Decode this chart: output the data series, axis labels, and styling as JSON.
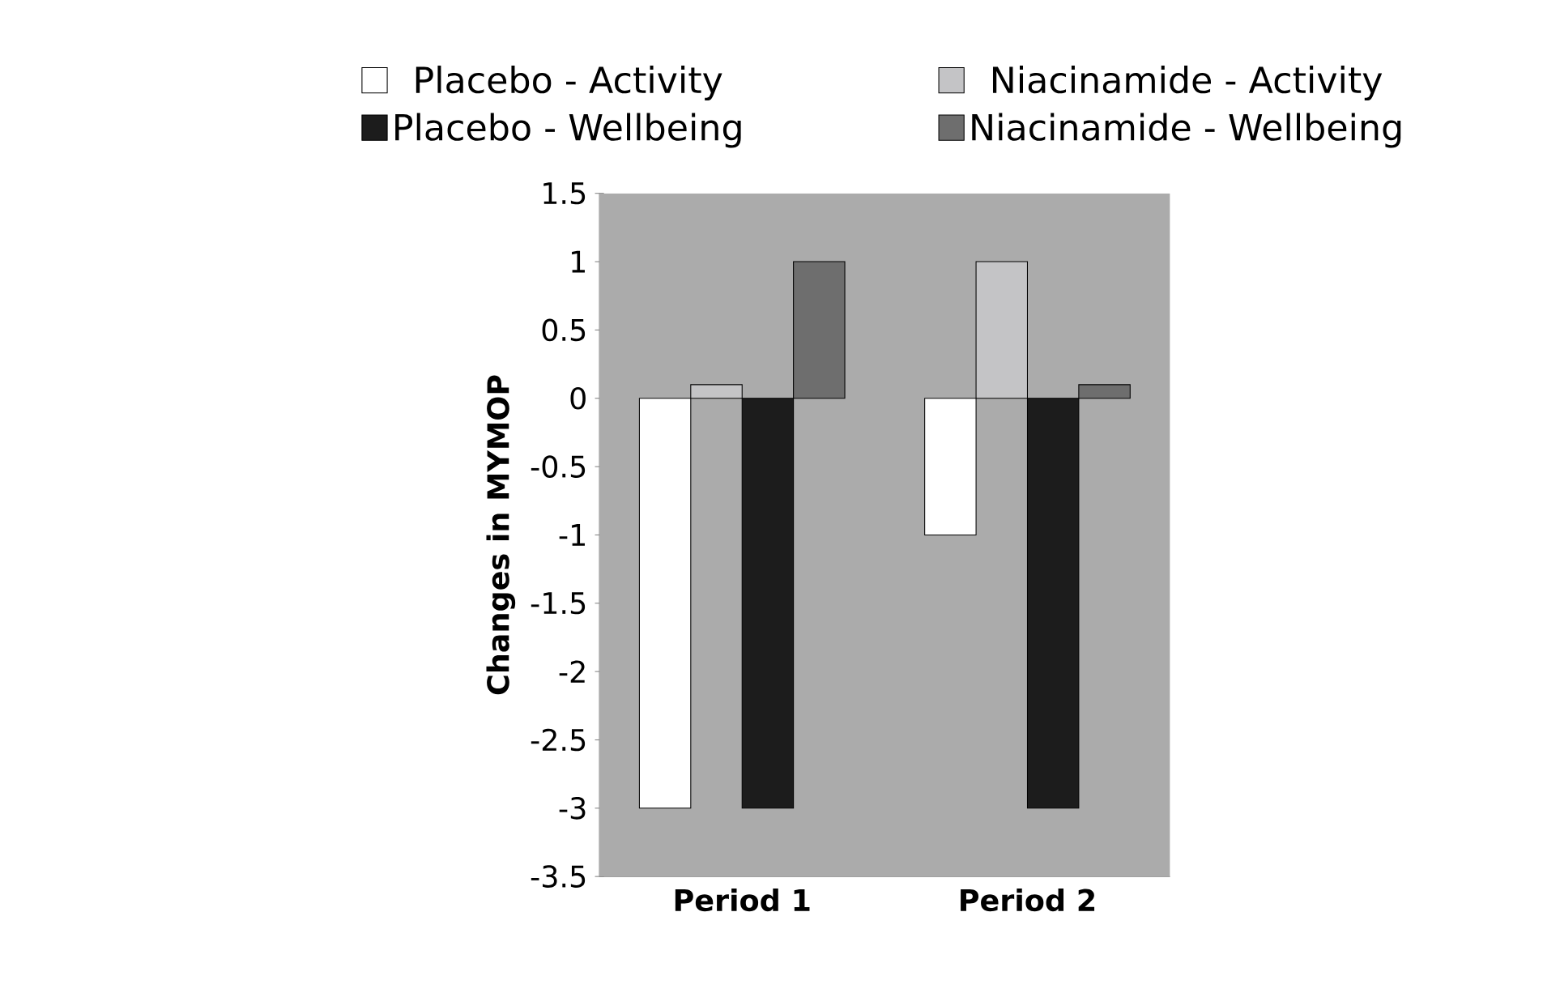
{
  "chart_data": {
    "type": "bar",
    "ylabel": "Changes in MYMOP",
    "categories": [
      "Period 1",
      "Period 2"
    ],
    "series": [
      {
        "name": "Placebo -  Activity",
        "color": "#ffffff",
        "values": [
          -3,
          -1
        ]
      },
      {
        "name": "Niacinamide -  Activity",
        "color": "#c4c4c6",
        "values": [
          0.1,
          1
        ]
      },
      {
        "name": "Placebo -  Wellbeing",
        "color": "#1c1c1c",
        "values": [
          -3,
          -3
        ]
      },
      {
        "name": "Niacinamide -  Wellbeing",
        "color": "#6e6e6e",
        "values": [
          1,
          0.1
        ]
      }
    ],
    "ylim": [
      -3.5,
      1.5
    ],
    "yticks": [
      1.5,
      1,
      0.5,
      0,
      -0.5,
      -1,
      -1.5,
      -2,
      -2.5,
      -3,
      -3.5
    ],
    "legend": "top",
    "grid": false
  }
}
